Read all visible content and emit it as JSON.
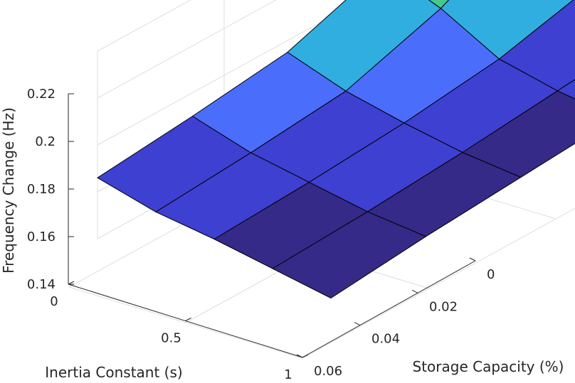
{
  "chart_data": {
    "type": "surface",
    "title": "",
    "xlabel": "Inertia Constant (s)",
    "ylabel": "Storage Capacity (%)",
    "zlabel": "Frequency Change (Hz)",
    "x_ticks": [
      "0",
      "0.5",
      "1"
    ],
    "y_ticks": [
      "0",
      "0.02",
      "0.04",
      "0.06"
    ],
    "z_ticks": [
      "0.14",
      "0.16",
      "0.18",
      "0.2",
      "0.22"
    ],
    "xlim": [
      0,
      1
    ],
    "ylim": [
      0,
      0.06
    ],
    "zlim": [
      0.14,
      0.22
    ],
    "clim": [
      0.145,
      0.219
    ],
    "x": [
      0,
      0.25,
      0.5,
      0.75,
      1
    ],
    "y": [
      0,
      0.015,
      0.03,
      0.045,
      0.06
    ],
    "z": [
      [
        0.22,
        0.189,
        0.175,
        0.17,
        0.166
      ],
      [
        0.2,
        0.179,
        0.166,
        0.162,
        0.159
      ],
      [
        0.175,
        0.165,
        0.16,
        0.157,
        0.155
      ],
      [
        0.163,
        0.159,
        0.155,
        0.152,
        0.15
      ],
      [
        0.159,
        0.155,
        0.152,
        0.149,
        0.145
      ]
    ],
    "grid": true,
    "colormap": [
      "#352a87",
      "#3d40d0",
      "#4a6dfb",
      "#31aee0",
      "#45c98e",
      "#c8c72a",
      "#f9fb0e"
    ]
  }
}
